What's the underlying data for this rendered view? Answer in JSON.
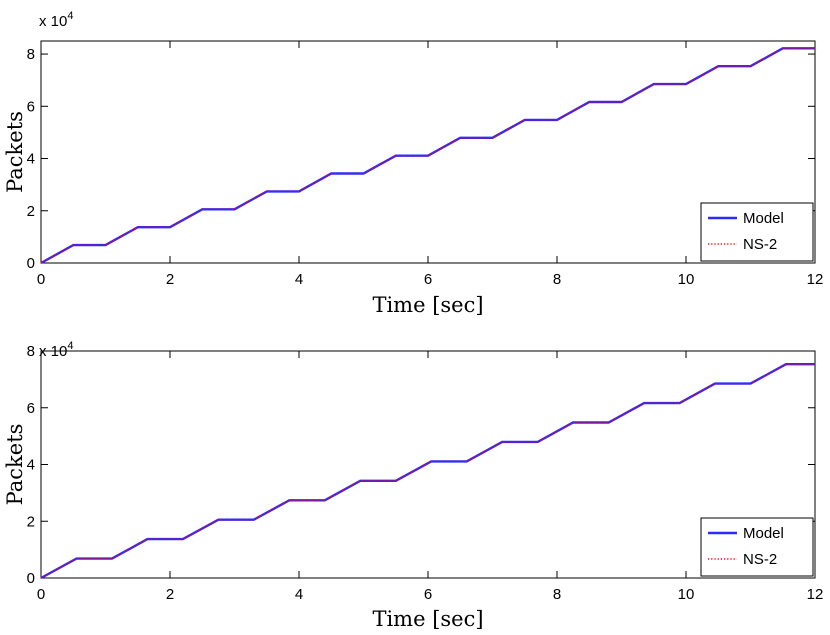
{
  "chart_data": [
    {
      "type": "line",
      "xlabel": "Time [sec]",
      "ylabel": "Packets",
      "xlim": [
        0,
        12
      ],
      "ylim": [
        0,
        85000
      ],
      "xticks": [
        0,
        2,
        4,
        6,
        8,
        10,
        12
      ],
      "yticks": [
        0,
        20000,
        40000,
        60000,
        80000
      ],
      "ytick_labels": [
        "0",
        "2",
        "4",
        "6",
        "8"
      ],
      "y_multiplier": {
        "base": "x 10",
        "exponent": "4"
      },
      "grid": false,
      "legend": "bottom-right",
      "series": [
        {
          "name": "Model",
          "color": "#2b2bff",
          "style": "solid",
          "x": [
            0,
            0.5,
            1.0,
            1.5,
            2.0,
            2.5,
            3.0,
            3.5,
            4.0,
            4.5,
            5.0,
            5.5,
            6.0,
            6.5,
            7.0,
            7.5,
            8.0,
            8.5,
            9.0,
            9.5,
            10.0,
            10.5,
            11.0,
            11.5,
            12.0
          ],
          "y": [
            0,
            6850,
            6850,
            13700,
            13700,
            20550,
            20550,
            27400,
            27400,
            34250,
            34250,
            41100,
            41100,
            47950,
            47950,
            54800,
            54800,
            61650,
            61650,
            68500,
            68500,
            75350,
            75350,
            82200,
            82200
          ]
        },
        {
          "name": "NS-2",
          "color": "#ff0000",
          "style": "dotted",
          "x": [
            0,
            0.5,
            1.0,
            1.5,
            2.0,
            2.5,
            3.0,
            3.5,
            4.0,
            4.5,
            5.0,
            5.5,
            6.0,
            6.5,
            7.0,
            7.5,
            8.0,
            8.5,
            9.0,
            9.5,
            10.0,
            10.5,
            11.0,
            11.5,
            12.0
          ],
          "y": [
            0,
            6850,
            6850,
            13700,
            13700,
            20550,
            20550,
            27400,
            27400,
            34250,
            34250,
            41100,
            41100,
            47950,
            47950,
            54800,
            54800,
            61650,
            61650,
            68500,
            68500,
            75350,
            75350,
            82200,
            82200
          ]
        }
      ]
    },
    {
      "type": "line",
      "xlabel": "Time [sec]",
      "ylabel": "Packets",
      "xlim": [
        0,
        12
      ],
      "ylim": [
        0,
        80000
      ],
      "xticks": [
        0,
        2,
        4,
        6,
        8,
        10,
        12
      ],
      "yticks": [
        0,
        20000,
        40000,
        60000,
        80000
      ],
      "ytick_labels": [
        "0",
        "2",
        "4",
        "6",
        "8"
      ],
      "y_multiplier": {
        "base": "x 10",
        "exponent": "4"
      },
      "grid": false,
      "legend": "bottom-right",
      "series": [
        {
          "name": "Model",
          "color": "#2b2bff",
          "style": "solid",
          "x": [
            0,
            0.55,
            1.1,
            1.65,
            2.2,
            2.75,
            3.3,
            3.85,
            4.4,
            4.95,
            5.5,
            6.05,
            6.6,
            7.15,
            7.7,
            8.25,
            8.8,
            9.35,
            9.9,
            10.45,
            11.0,
            11.55,
            12.0
          ],
          "y": [
            0,
            6850,
            6850,
            13700,
            13700,
            20550,
            20550,
            27400,
            27400,
            34250,
            34250,
            41100,
            41100,
            47950,
            47950,
            54800,
            54800,
            61650,
            61650,
            68500,
            68500,
            75350,
            75350
          ]
        },
        {
          "name": "NS-2",
          "color": "#ff0000",
          "style": "dotted",
          "x": [
            0,
            0.55,
            1.1,
            1.65,
            2.2,
            2.75,
            3.3,
            3.85,
            4.4,
            4.95,
            5.5,
            6.05,
            6.6,
            7.15,
            7.7,
            8.25,
            8.8,
            9.35,
            9.9,
            10.45,
            11.0,
            11.55,
            12.0
          ],
          "y": [
            0,
            6850,
            6850,
            13700,
            13700,
            20550,
            20550,
            27400,
            27400,
            34250,
            34250,
            41100,
            41100,
            47950,
            47950,
            54800,
            54800,
            61650,
            61650,
            68500,
            68500,
            75350,
            75350
          ]
        }
      ]
    }
  ]
}
